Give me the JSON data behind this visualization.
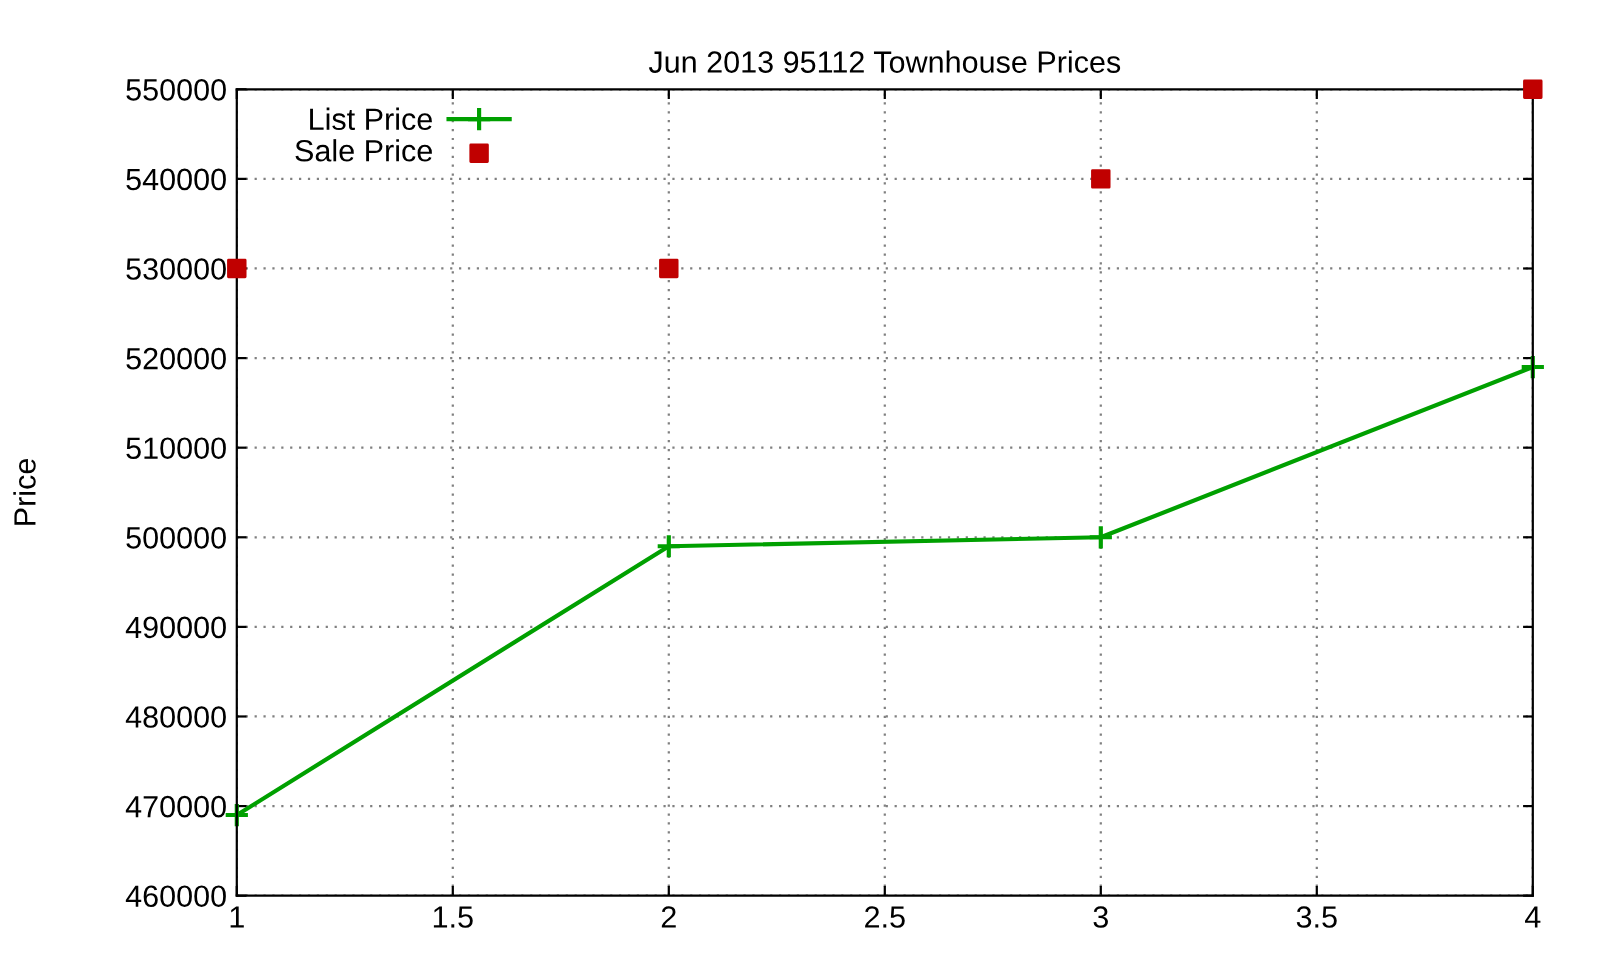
{
  "chart_data": {
    "type": "line",
    "title": "Jun 2013 95112 Townhouse Prices",
    "ylabel": "Price",
    "x": [
      1,
      2,
      3,
      4
    ],
    "series": [
      {
        "name": "List Price",
        "color": "#00a000",
        "marker": "cross",
        "values": [
          469000,
          499000,
          500000,
          519000
        ]
      },
      {
        "name": "Sale Price",
        "type": "scatter",
        "color": "#c00000",
        "marker": "square",
        "values": [
          530000,
          530000,
          540000,
          550000
        ]
      }
    ],
    "xlim": [
      1,
      4
    ],
    "xticks": [
      1,
      1.5,
      2,
      2.5,
      3,
      3.5,
      4
    ],
    "ylim": [
      460000,
      550000
    ],
    "yticks": [
      460000,
      470000,
      480000,
      490000,
      500000,
      510000,
      520000,
      530000,
      540000,
      550000
    ],
    "grid": true,
    "legend": "top left"
  }
}
